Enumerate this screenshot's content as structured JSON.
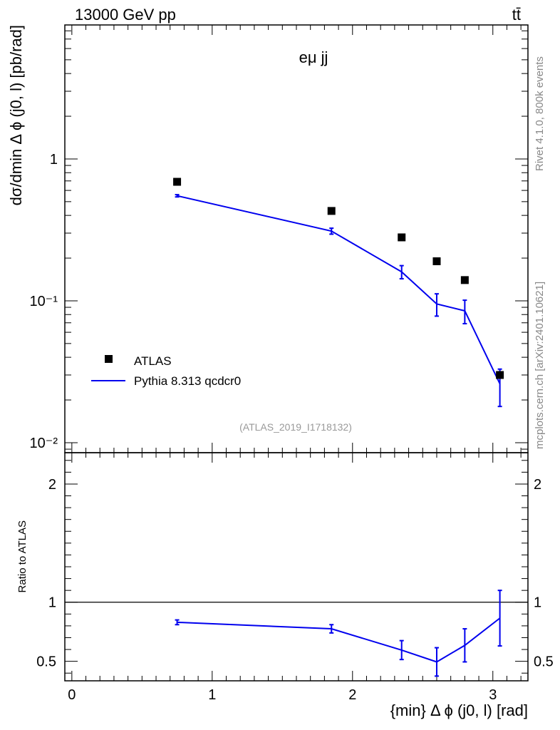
{
  "header": {
    "energy": "13000 GeV pp",
    "process": "tt̄"
  },
  "side_labels": {
    "rivet": "Rivet 4.1.0,  800k events",
    "source": "mcplots.cern.ch [arXiv:2401.10621]"
  },
  "watermark": "(ATLAS_2019_I1718132)",
  "chart_data": [
    {
      "type": "scatter",
      "title": "eμ jj",
      "xlabel": "{min} Δ ϕ (j0, l) [rad]",
      "ylabel": "dσ/dmin Δ ϕ (j0, l) [pb/rad]",
      "yscale": "log",
      "xlim": [
        -0.05,
        3.25
      ],
      "ylim": [
        0.0085,
        8.8
      ],
      "ytick_labels": [
        "10⁻²",
        "10⁻¹",
        "1"
      ],
      "xtick_labels": [
        "0",
        "1",
        "2",
        "3"
      ],
      "legend_position": "lower-left",
      "series": [
        {
          "name": "ATLAS",
          "kind": "markers",
          "color": "#000000",
          "x": [
            0.75,
            1.85,
            2.35,
            2.6,
            2.8,
            3.05
          ],
          "values": [
            0.69,
            0.43,
            0.28,
            0.19,
            0.14,
            0.03
          ]
        },
        {
          "name": "Pythia 8.313 qcdcr0",
          "kind": "line",
          "color": "#0000ee",
          "x": [
            0.75,
            1.85,
            2.35,
            2.6,
            2.8,
            3.05
          ],
          "values": [
            0.55,
            0.31,
            0.16,
            0.095,
            0.085,
            0.026
          ],
          "err_low": [
            0.01,
            0.015,
            0.017,
            0.017,
            0.016,
            0.008
          ],
          "err_high": [
            0.01,
            0.015,
            0.017,
            0.017,
            0.016,
            0.007
          ]
        }
      ]
    },
    {
      "type": "line",
      "title": "",
      "xlabel": "{min} Δ ϕ (j0, l) [rad]",
      "ylabel": "Ratio to ATLAS",
      "xlim": [
        -0.05,
        3.25
      ],
      "ylim": [
        0.335,
        2.265
      ],
      "ytick_labels": [
        "0.5",
        "1",
        "2"
      ],
      "reference_line": 1.0,
      "series": [
        {
          "name": "Pythia 8.313 qcdcr0",
          "color": "#0000ee",
          "x": [
            0.75,
            1.85,
            2.35,
            2.6,
            2.8,
            3.05
          ],
          "values": [
            0.83,
            0.775,
            0.595,
            0.495,
            0.635,
            0.865
          ],
          "err_low": [
            0.02,
            0.035,
            0.08,
            0.12,
            0.14,
            0.235
          ],
          "err_high": [
            0.02,
            0.035,
            0.08,
            0.12,
            0.14,
            0.235
          ]
        }
      ]
    }
  ]
}
